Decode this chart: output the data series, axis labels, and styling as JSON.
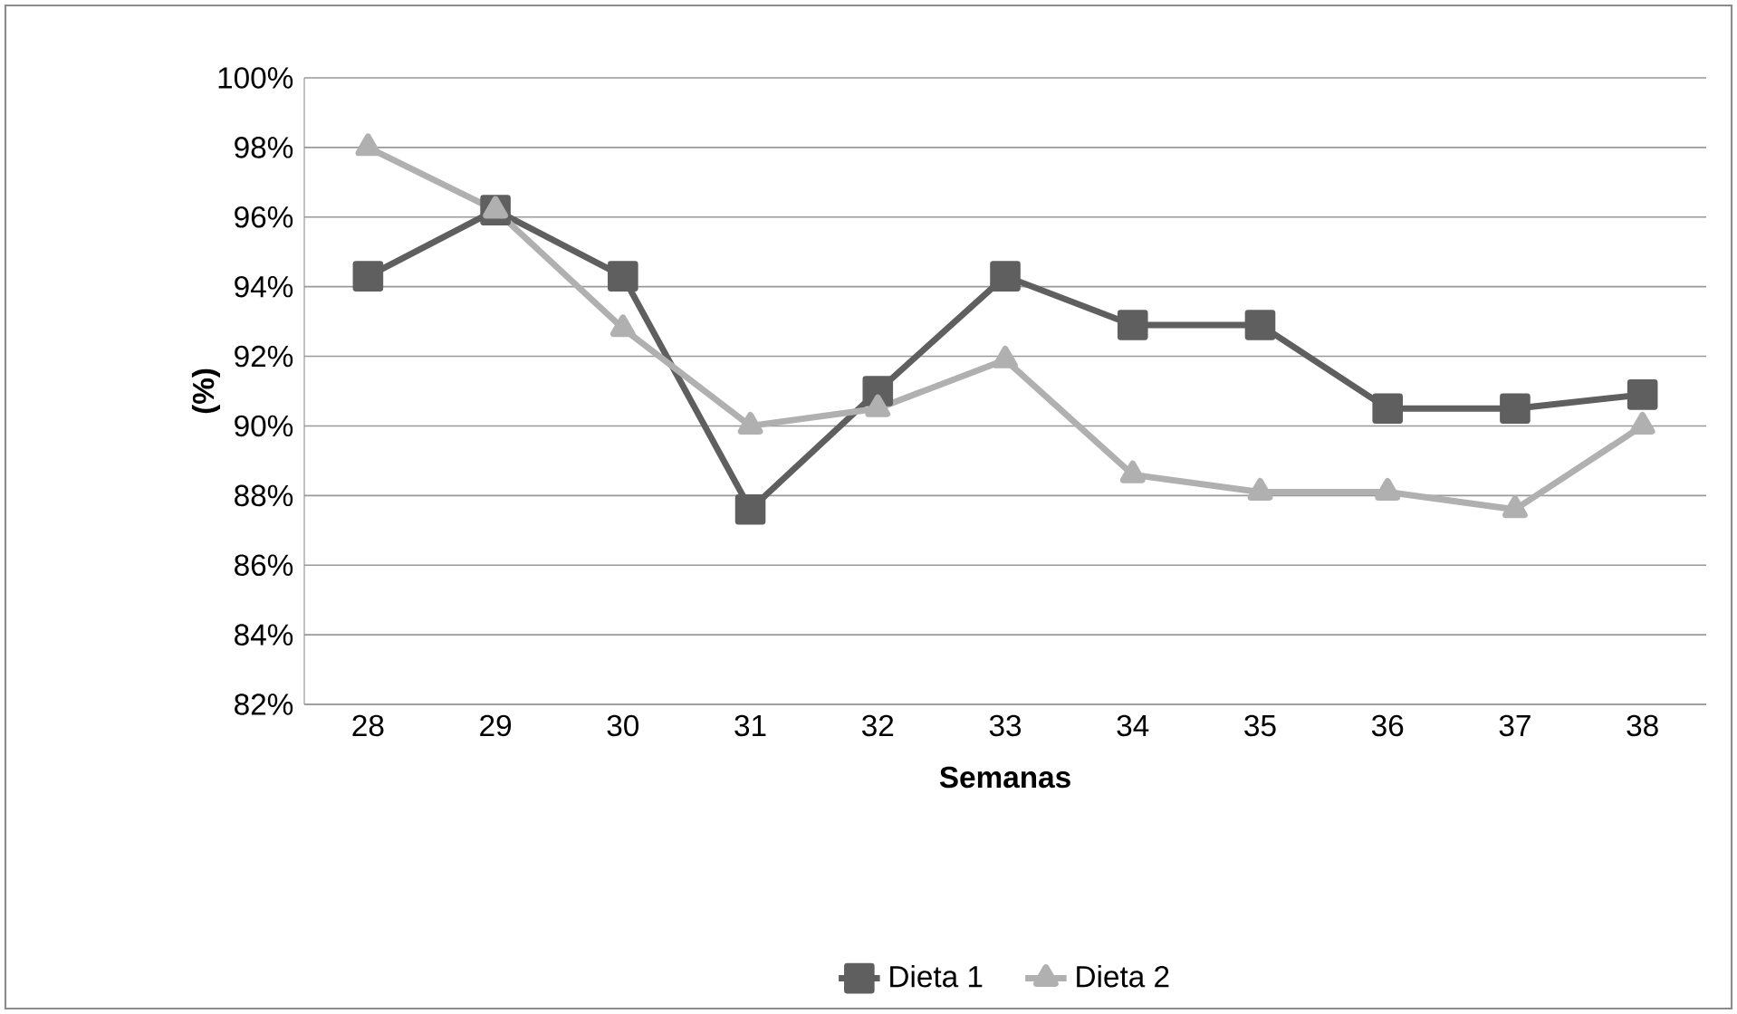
{
  "chart_data": {
    "type": "line",
    "xlabel": "Semanas",
    "ylabel": "(%)",
    "categories": [
      "28",
      "29",
      "30",
      "31",
      "32",
      "33",
      "34",
      "35",
      "36",
      "37",
      "38"
    ],
    "series": [
      {
        "name": "Dieta 1",
        "color": "#5f5f5f",
        "marker": "square",
        "values": [
          94.3,
          96.2,
          94.3,
          87.6,
          91.0,
          94.3,
          92.9,
          92.9,
          90.5,
          90.5,
          90.9
        ]
      },
      {
        "name": "Dieta 2",
        "color": "#b0b0b0",
        "marker": "triangle",
        "values": [
          98.0,
          96.2,
          92.8,
          90.0,
          90.5,
          91.9,
          88.6,
          88.1,
          88.1,
          87.6,
          90.0
        ]
      }
    ],
    "ylim": [
      82,
      100
    ],
    "yticks": [
      {
        "value": 82,
        "label": "82%"
      },
      {
        "value": 84,
        "label": "84%"
      },
      {
        "value": 86,
        "label": "86%"
      },
      {
        "value": 88,
        "label": "88%"
      },
      {
        "value": 90,
        "label": "90%"
      },
      {
        "value": 92,
        "label": "92%"
      },
      {
        "value": 94,
        "label": "94%"
      },
      {
        "value": 96,
        "label": "96%"
      },
      {
        "value": 98,
        "label": "98%"
      },
      {
        "value": 100,
        "label": "100%"
      }
    ],
    "grid": "y",
    "legend": "bottom",
    "line_style": "solid"
  }
}
